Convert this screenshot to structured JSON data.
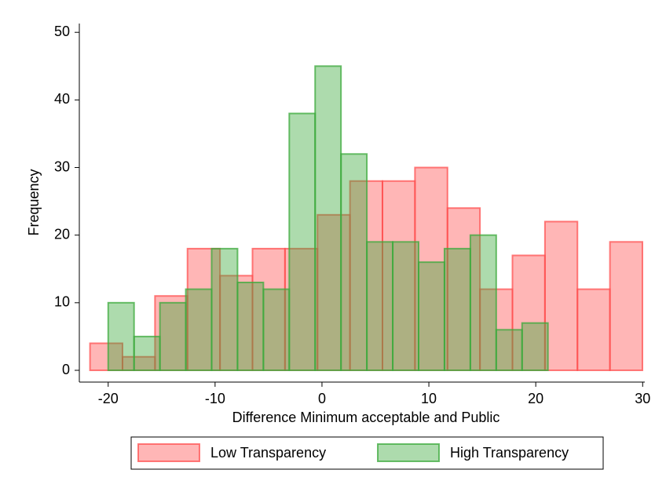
{
  "chart_data": {
    "type": "histogram",
    "x_label": "Difference Minimum acceptable and Public",
    "y_label": "Frequency",
    "xlim": [
      -22.7,
      30.2
    ],
    "ylim": [
      0,
      51.3
    ],
    "xticks": [
      -20,
      -10,
      0,
      10,
      20,
      30
    ],
    "yticks": [
      0,
      10,
      20,
      30,
      40,
      50
    ],
    "legend": "bottom",
    "series": [
      {
        "name": "Low Transparency",
        "color": "#ff5050",
        "bins": [
          -21.7,
          -18.66,
          -15.62,
          -12.58,
          -9.54,
          -6.5,
          -3.46,
          -0.42,
          2.62,
          5.66,
          8.7,
          11.74,
          14.78,
          17.82,
          20.86,
          23.9,
          26.94,
          29.98
        ],
        "values": [
          4,
          2,
          11,
          18,
          14,
          18,
          18,
          23,
          28,
          28,
          30,
          24,
          12,
          17,
          22,
          12,
          19
        ]
      },
      {
        "name": "High Transparency",
        "color": "#3caa3c",
        "bins": [
          -20,
          -17.58,
          -15.16,
          -12.74,
          -10.32,
          -7.9,
          -5.48,
          -3.06,
          -0.64,
          1.78,
          4.2,
          6.62,
          9.04,
          11.46,
          13.88,
          16.3,
          18.72,
          21.14
        ],
        "values": [
          10,
          5,
          10,
          12,
          18,
          13,
          12,
          38,
          45,
          32,
          19,
          19,
          16,
          18,
          20,
          6,
          7
        ]
      }
    ]
  }
}
